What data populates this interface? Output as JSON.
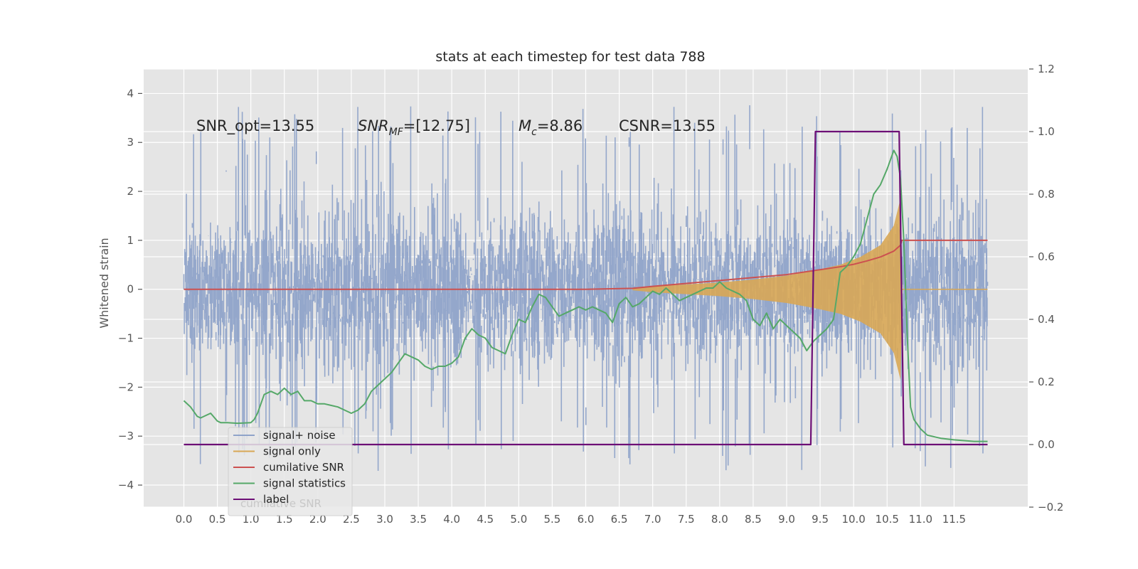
{
  "chart_data": {
    "type": "line",
    "title": "stats at each timestep for test data 788",
    "xlabel": "",
    "ylabel": "Whitened strain",
    "y2label": "",
    "xlim": [
      -0.6,
      12.6
    ],
    "ylim": [
      -4.45,
      4.5
    ],
    "y2lim": [
      -0.2,
      1.2
    ],
    "x_ticks": [
      "0.0",
      "0.5",
      "1.0",
      "1.5",
      "2.0",
      "2.5",
      "3.0",
      "3.5",
      "4.0",
      "4.5",
      "5.0",
      "5.5",
      "6.0",
      "6.5",
      "7.0",
      "7.5",
      "8.0",
      "8.5",
      "9.0",
      "9.5",
      "10.0",
      "10.5",
      "11.0",
      "11.5"
    ],
    "y_ticks": [
      "4",
      "3",
      "2",
      "1",
      "0",
      "−1",
      "−2",
      "−3",
      "−4"
    ],
    "y2_ticks": [
      "1.2",
      "1.0",
      "0.8",
      "0.6",
      "0.4",
      "0.2",
      "0.0",
      "−0.2"
    ],
    "grid": true,
    "legend": "lower-left",
    "annotations": {
      "snr_opt": "SNR_opt=13.55",
      "snr_mf_main": "SNR",
      "snr_mf_sub": "MF",
      "snr_mf_rest": "=[12.75]",
      "mc_main": "M",
      "mc_sub": "c",
      "mc_rest": "=8.86",
      "csnr": "CSNR=13.55"
    },
    "legend_hidden_text": "cumilative SNR",
    "series": [
      {
        "name": "signal+ noise",
        "axis": "left",
        "color": "#8fa3c9",
        "description_values": {
          "x_start": 0.0,
          "x_end": 12.0,
          "typical_range": [
            -2.2,
            2.3
          ],
          "extremes": [
            -3.95,
            4.13
          ]
        }
      },
      {
        "name": "signal only",
        "axis": "left",
        "color": "#d8a755",
        "envelope": {
          "x": [
            6.7,
            7.0,
            7.5,
            8.0,
            8.5,
            9.0,
            9.4,
            9.8,
            10.1,
            10.4,
            10.6,
            10.7,
            10.73
          ],
          "amp": [
            0.02,
            0.06,
            0.1,
            0.14,
            0.2,
            0.28,
            0.38,
            0.5,
            0.66,
            0.9,
            1.3,
            1.85,
            0.0
          ]
        }
      },
      {
        "name": "cumilative SNR",
        "axis": "left",
        "color": "#cc5150",
        "x": [
          0.0,
          6.0,
          6.7,
          7.0,
          7.5,
          8.0,
          8.5,
          9.0,
          9.5,
          9.8,
          10.0,
          10.2,
          10.4,
          10.6,
          10.7,
          10.72,
          11.0,
          12.0
        ],
        "y": [
          0.0,
          0.0,
          0.02,
          0.06,
          0.12,
          0.18,
          0.24,
          0.3,
          0.4,
          0.46,
          0.51,
          0.58,
          0.66,
          0.78,
          0.9,
          1.0,
          1.0,
          1.0
        ]
      },
      {
        "name": "signal statistics",
        "axis": "right",
        "color": "#55a868",
        "x": [
          0.0,
          0.1,
          0.2,
          0.25,
          0.3,
          0.4,
          0.5,
          0.55,
          0.65,
          0.8,
          1.0,
          1.05,
          1.1,
          1.15,
          1.2,
          1.3,
          1.4,
          1.5,
          1.6,
          1.7,
          1.8,
          1.9,
          2.0,
          2.1,
          2.2,
          2.3,
          2.4,
          2.5,
          2.6,
          2.7,
          2.8,
          2.9,
          3.0,
          3.1,
          3.2,
          3.3,
          3.4,
          3.5,
          3.6,
          3.7,
          3.8,
          3.9,
          4.0,
          4.1,
          4.2,
          4.3,
          4.4,
          4.5,
          4.6,
          4.7,
          4.8,
          4.9,
          5.0,
          5.1,
          5.2,
          5.3,
          5.4,
          5.5,
          5.6,
          5.7,
          5.8,
          5.9,
          6.0,
          6.1,
          6.2,
          6.3,
          6.4,
          6.5,
          6.6,
          6.7,
          6.8,
          6.9,
          7.0,
          7.1,
          7.2,
          7.3,
          7.4,
          7.5,
          7.6,
          7.7,
          7.8,
          7.9,
          8.0,
          8.1,
          8.2,
          8.3,
          8.4,
          8.5,
          8.6,
          8.7,
          8.8,
          8.9,
          9.0,
          9.1,
          9.2,
          9.3,
          9.4,
          9.5,
          9.6,
          9.7,
          9.8,
          9.9,
          10.0,
          10.1,
          10.2,
          10.3,
          10.4,
          10.5,
          10.6,
          10.65,
          10.7,
          10.75,
          10.8,
          10.85,
          10.9,
          11.0,
          11.1,
          11.3,
          11.5,
          11.8,
          12.0
        ],
        "y": [
          0.14,
          0.12,
          0.09,
          0.085,
          0.09,
          0.1,
          0.075,
          0.07,
          0.07,
          0.068,
          0.07,
          0.08,
          0.1,
          0.13,
          0.16,
          0.17,
          0.16,
          0.18,
          0.16,
          0.17,
          0.14,
          0.14,
          0.13,
          0.13,
          0.125,
          0.12,
          0.11,
          0.1,
          0.11,
          0.13,
          0.17,
          0.19,
          0.21,
          0.23,
          0.26,
          0.29,
          0.28,
          0.27,
          0.25,
          0.24,
          0.25,
          0.25,
          0.26,
          0.28,
          0.34,
          0.37,
          0.35,
          0.34,
          0.31,
          0.3,
          0.29,
          0.35,
          0.4,
          0.39,
          0.44,
          0.48,
          0.47,
          0.44,
          0.41,
          0.42,
          0.43,
          0.44,
          0.43,
          0.44,
          0.43,
          0.42,
          0.39,
          0.45,
          0.47,
          0.44,
          0.45,
          0.47,
          0.49,
          0.48,
          0.5,
          0.48,
          0.46,
          0.47,
          0.48,
          0.49,
          0.5,
          0.5,
          0.52,
          0.5,
          0.49,
          0.48,
          0.46,
          0.4,
          0.38,
          0.42,
          0.37,
          0.4,
          0.38,
          0.36,
          0.34,
          0.3,
          0.33,
          0.35,
          0.37,
          0.4,
          0.55,
          0.57,
          0.6,
          0.64,
          0.72,
          0.8,
          0.83,
          0.88,
          0.94,
          0.92,
          0.85,
          0.65,
          0.35,
          0.12,
          0.08,
          0.05,
          0.03,
          0.02,
          0.015,
          0.01,
          0.01
        ]
      },
      {
        "name": "label",
        "axis": "right",
        "color": "#6d0f76",
        "x": [
          0.0,
          9.36,
          9.43,
          10.68,
          10.75,
          12.0
        ],
        "y": [
          0.0,
          0.0,
          1.0,
          1.0,
          0.0,
          0.0
        ]
      }
    ]
  }
}
